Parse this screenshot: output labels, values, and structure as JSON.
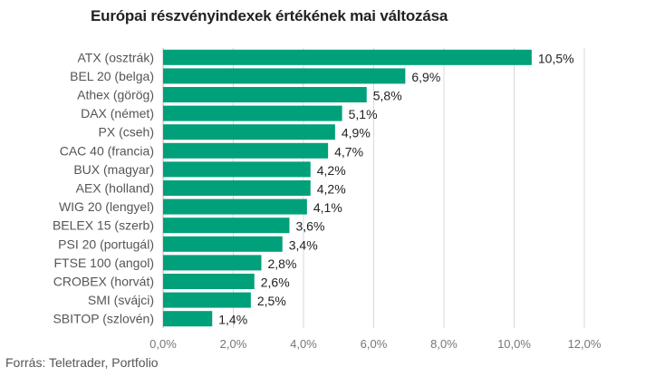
{
  "title": "Európai részvényindexek értékének mai változása",
  "source": "Forrás: Teletrader, Portfolio",
  "colors": {
    "bar": "#00a07a",
    "grid": "#d9d9d9",
    "text": "#555555"
  },
  "chart_data": {
    "type": "bar",
    "orientation": "horizontal",
    "title": "Európai részvényindexek értékének mai változása",
    "categories": [
      "ATX (osztrák)",
      "BEL 20 (belga)",
      "Athex (görög)",
      "DAX (német)",
      "PX (cseh)",
      "CAC 40 (francia)",
      "BUX (magyar)",
      "AEX (holland)",
      "WIG 20 (lengyel)",
      "BELEX 15 (szerb)",
      "PSI 20 (portugál)",
      "FTSE 100 (angol)",
      "CROBEX (horvát)",
      "SMI (svájci)",
      "SBITOP (szlovén)"
    ],
    "values": [
      10.5,
      6.9,
      5.8,
      5.1,
      4.9,
      4.7,
      4.2,
      4.2,
      4.1,
      3.6,
      3.4,
      2.8,
      2.6,
      2.5,
      1.4
    ],
    "value_labels": [
      "10,5%",
      "6,9%",
      "5,8%",
      "5,1%",
      "4,9%",
      "4,7%",
      "4,2%",
      "4,2%",
      "4,1%",
      "3,6%",
      "3,4%",
      "2,8%",
      "2,6%",
      "2,5%",
      "1,4%"
    ],
    "xlim": [
      0,
      12
    ],
    "xticks": [
      0,
      2,
      4,
      6,
      8,
      10,
      12
    ],
    "xtick_labels": [
      "0,0%",
      "2,0%",
      "4,0%",
      "6,0%",
      "8,0%",
      "10,0%",
      "12,0%"
    ],
    "grid": true,
    "legend": "none"
  }
}
